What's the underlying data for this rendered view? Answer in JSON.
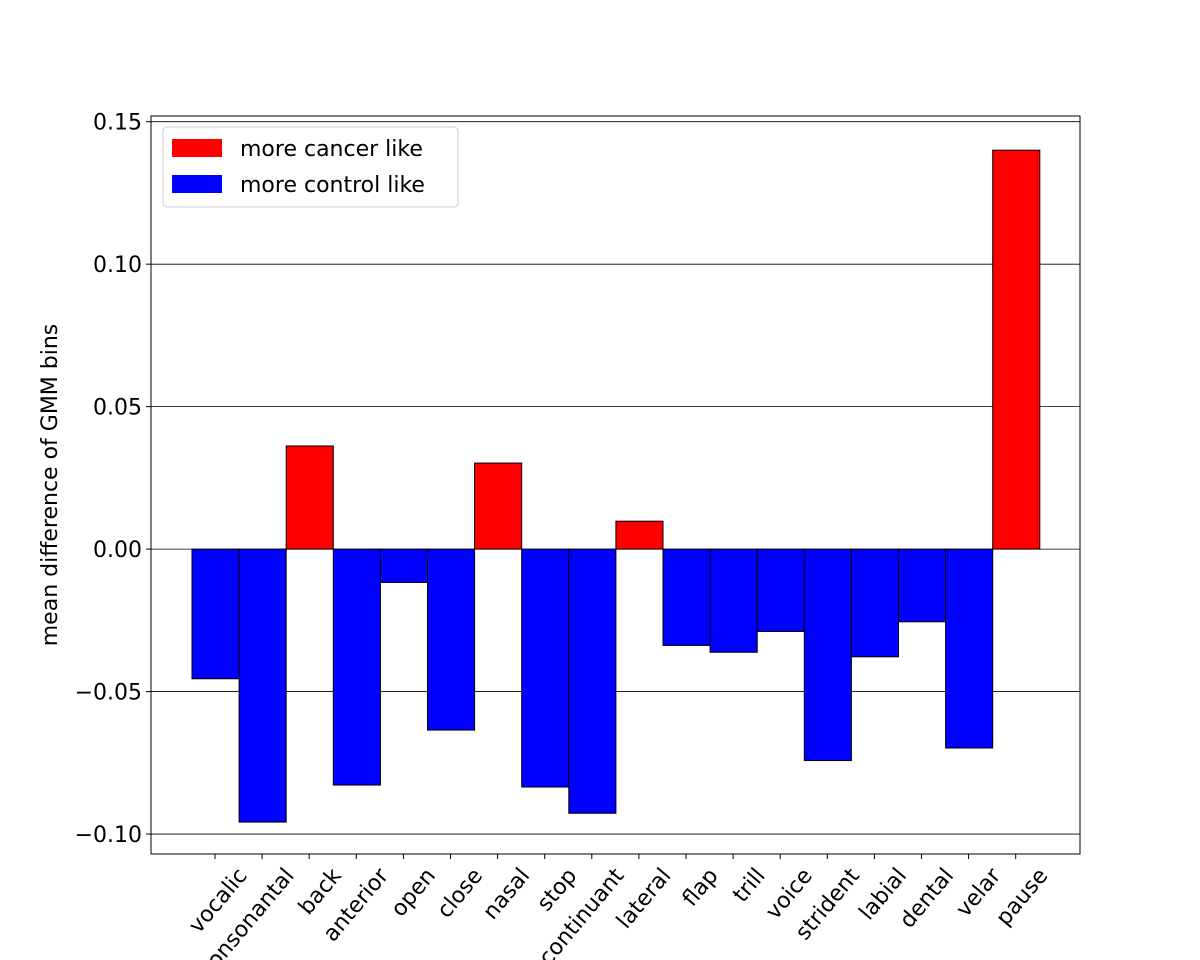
{
  "chart_data": {
    "type": "bar",
    "title": "",
    "xlabel": "",
    "ylabel": "mean difference of GMM bins",
    "categories": [
      "vocalic",
      "consonantal",
      "back",
      "anterior",
      "open",
      "close",
      "nasal",
      "stop",
      "continuant",
      "lateral",
      "flap",
      "trill",
      "voice",
      "strident",
      "labial",
      "dental",
      "velar",
      "pause"
    ],
    "values": [
      -0.0455,
      -0.0958,
      0.0362,
      -0.0828,
      -0.0117,
      -0.0635,
      0.0302,
      -0.0835,
      -0.0927,
      0.0098,
      -0.0338,
      -0.0362,
      -0.0289,
      -0.0742,
      -0.0378,
      -0.0255,
      -0.0698,
      0.14
    ],
    "ylim": [
      -0.107,
      0.152
    ],
    "yticks": [
      -0.1,
      -0.05,
      0.0,
      0.05,
      0.1,
      0.15
    ],
    "ytick_labels": [
      "−0.10",
      "−0.05",
      "0.00",
      "0.05",
      "0.10",
      "0.15"
    ],
    "grid": "horizontal",
    "legend_placement": "top-left",
    "legend": [
      {
        "label": "more cancer like",
        "color": "#ff0000"
      },
      {
        "label": "more control like",
        "color": "#0000ff"
      }
    ],
    "colors": {
      "positive": "#ff0000",
      "negative": "#0000ff"
    }
  }
}
